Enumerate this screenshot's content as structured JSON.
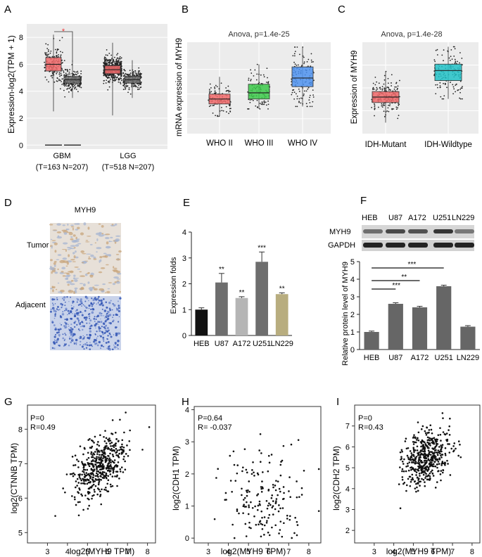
{
  "colors": {
    "red": "#f0696a",
    "gray": "#6e6e6e",
    "green": "#3cc94a",
    "blue": "#4f93f0",
    "teal": "#22c2c8",
    "lightgray": "#b5b5b5",
    "olive": "#b8ad7f",
    "black": "#111111"
  },
  "chart_data": [
    {
      "id": "A",
      "panel_label": "A",
      "type": "box",
      "ylabel": "Expression-log2(TPM + 1)",
      "ylim": [
        -0.3,
        9
      ],
      "yticks": [
        0,
        2,
        4,
        6,
        8
      ],
      "groups": [
        {
          "name": "GBM",
          "sub": "(T=163 N=207)",
          "boxes": [
            {
              "color": "red",
              "q1": 5.5,
              "median": 6.0,
              "q3": 6.5,
              "min": 2.5,
              "max": 8.2,
              "n": 163
            },
            {
              "color": "gray",
              "q1": 4.6,
              "median": 4.85,
              "q3": 5.1,
              "min": 3.5,
              "max": 6.3,
              "n": 207
            }
          ]
        },
        {
          "name": "LGG",
          "sub": "(T=518 N=207)",
          "boxes": [
            {
              "color": "red",
              "q1": 5.3,
              "median": 5.6,
              "q3": 5.9,
              "min": 2.2,
              "max": 7.6,
              "n": 518
            },
            {
              "color": "gray",
              "q1": 4.6,
              "median": 4.85,
              "q3": 5.1,
              "min": 3.5,
              "max": 6.3,
              "n": 207
            }
          ]
        }
      ],
      "significance": "*",
      "zero_lines": [
        0,
        0
      ]
    },
    {
      "id": "B",
      "panel_label": "B",
      "type": "box",
      "title": "Anova, p=1.4e-25",
      "ylabel": "mRNA expression of MYH9",
      "ylim": [
        1.9,
        5.6
      ],
      "categories": [
        "WHO II",
        "WHO III",
        "WHO IV"
      ],
      "boxes": [
        {
          "color": "red",
          "q1": 3.1,
          "median": 3.3,
          "q3": 3.5,
          "min": 2.6,
          "max": 4.2,
          "n": 110
        },
        {
          "color": "green",
          "q1": 3.3,
          "median": 3.55,
          "q3": 3.9,
          "min": 2.9,
          "max": 4.7,
          "n": 100
        },
        {
          "color": "blue",
          "q1": 3.8,
          "median": 4.15,
          "q3": 4.6,
          "min": 3.0,
          "max": 5.4,
          "n": 140
        }
      ]
    },
    {
      "id": "C",
      "panel_label": "C",
      "type": "box",
      "title": "Anova, p=1.4e-28",
      "ylabel": "Expression of MYH9",
      "ylim": [
        0,
        10
      ],
      "categories": [
        "IDH-Mutant",
        "IDH-Wildtype"
      ],
      "boxes": [
        {
          "color": "red",
          "q1": 3.4,
          "median": 4.0,
          "q3": 4.6,
          "min": 1.2,
          "max": 6.8,
          "n": 180
        },
        {
          "color": "teal",
          "q1": 5.8,
          "median": 6.9,
          "q3": 7.6,
          "min": 3.8,
          "max": 9.5,
          "n": 140
        }
      ]
    },
    {
      "id": "E",
      "panel_label": "E",
      "type": "bar",
      "categories": [
        "HEB",
        "U87",
        "A172",
        "U251",
        "LN229"
      ],
      "values": [
        1.0,
        2.05,
        1.45,
        2.85,
        1.6
      ],
      "errors": [
        0.07,
        0.35,
        0.05,
        0.38,
        0.05
      ],
      "significance": [
        "",
        "**",
        "**",
        "***",
        "**"
      ],
      "bar_colors": [
        "black",
        "gray",
        "lightgray",
        "gray",
        "olive"
      ],
      "ylabel": "Expression folds",
      "ylim": [
        0,
        4
      ],
      "yticks": [
        0,
        1,
        2,
        3,
        4
      ]
    },
    {
      "id": "F",
      "panel_label": "F",
      "type": "bar",
      "categories": [
        "HEB",
        "U87",
        "A172",
        "U251",
        "LN229"
      ],
      "values": [
        1.0,
        2.6,
        2.4,
        3.6,
        1.3
      ],
      "errors": [
        0.05,
        0.06,
        0.06,
        0.06,
        0.06
      ],
      "ylabel": "Relative protein level of MYH9",
      "ylim": [
        0,
        5
      ],
      "yticks": [
        0,
        1,
        2,
        3,
        4,
        5
      ],
      "brackets": [
        {
          "to": "U87",
          "label": "***"
        },
        {
          "to": "A172",
          "label": "**"
        },
        {
          "to": "U251",
          "label": "***"
        }
      ],
      "blot_labels": [
        "MYH9",
        "GAPDH"
      ]
    },
    {
      "id": "G",
      "panel_label": "G",
      "type": "scatter",
      "xlabel": "log2(MYH9 TPM)",
      "ylabel": "log2(CTNNB TPM)",
      "xlim": [
        2,
        8.4
      ],
      "ylim": [
        4.7,
        8.7
      ],
      "xticks": [
        3,
        4,
        5,
        6,
        7,
        8
      ],
      "yticks": [
        5,
        6,
        7,
        8
      ],
      "P": "P=0",
      "R": "R=0.49",
      "center": [
        5.6,
        6.9
      ],
      "sd": [
        0.65,
        0.45
      ],
      "corr": 0.49,
      "n": 480
    },
    {
      "id": "H",
      "panel_label": "H",
      "type": "scatter",
      "xlabel": "log2(MYH9 TPM)",
      "ylabel": "log2(CDH1 TPM)",
      "xlim": [
        2.3,
        8.6
      ],
      "ylim": [
        -0.15,
        4.1
      ],
      "xticks": [
        3,
        4,
        5,
        6,
        7,
        8
      ],
      "yticks": [
        0,
        1,
        2,
        3,
        4
      ],
      "P": "P=0.64",
      "R": "R= -0.037",
      "center": [
        5.9,
        1.2
      ],
      "sd": [
        1.0,
        0.85
      ],
      "corr": -0.04,
      "n": 170
    },
    {
      "id": "I",
      "panel_label": "I",
      "type": "scatter",
      "xlabel": "log2(MYH9 TPM)",
      "ylabel": "log2(CDH2 TPM)",
      "xlim": [
        2,
        8.4
      ],
      "ylim": [
        1.4,
        8
      ],
      "xticks": [
        3,
        4,
        5,
        6,
        7,
        8
      ],
      "yticks": [
        2,
        3,
        4,
        5,
        6,
        7
      ],
      "P": "P=0",
      "R": "R=0.43",
      "center": [
        5.7,
        5.5
      ],
      "sd": [
        0.6,
        0.7
      ],
      "corr": 0.43,
      "n": 480
    }
  ],
  "panel_D": {
    "label": "D",
    "title": "MYH9",
    "rows": [
      "Tumor",
      "Adjacent"
    ]
  }
}
